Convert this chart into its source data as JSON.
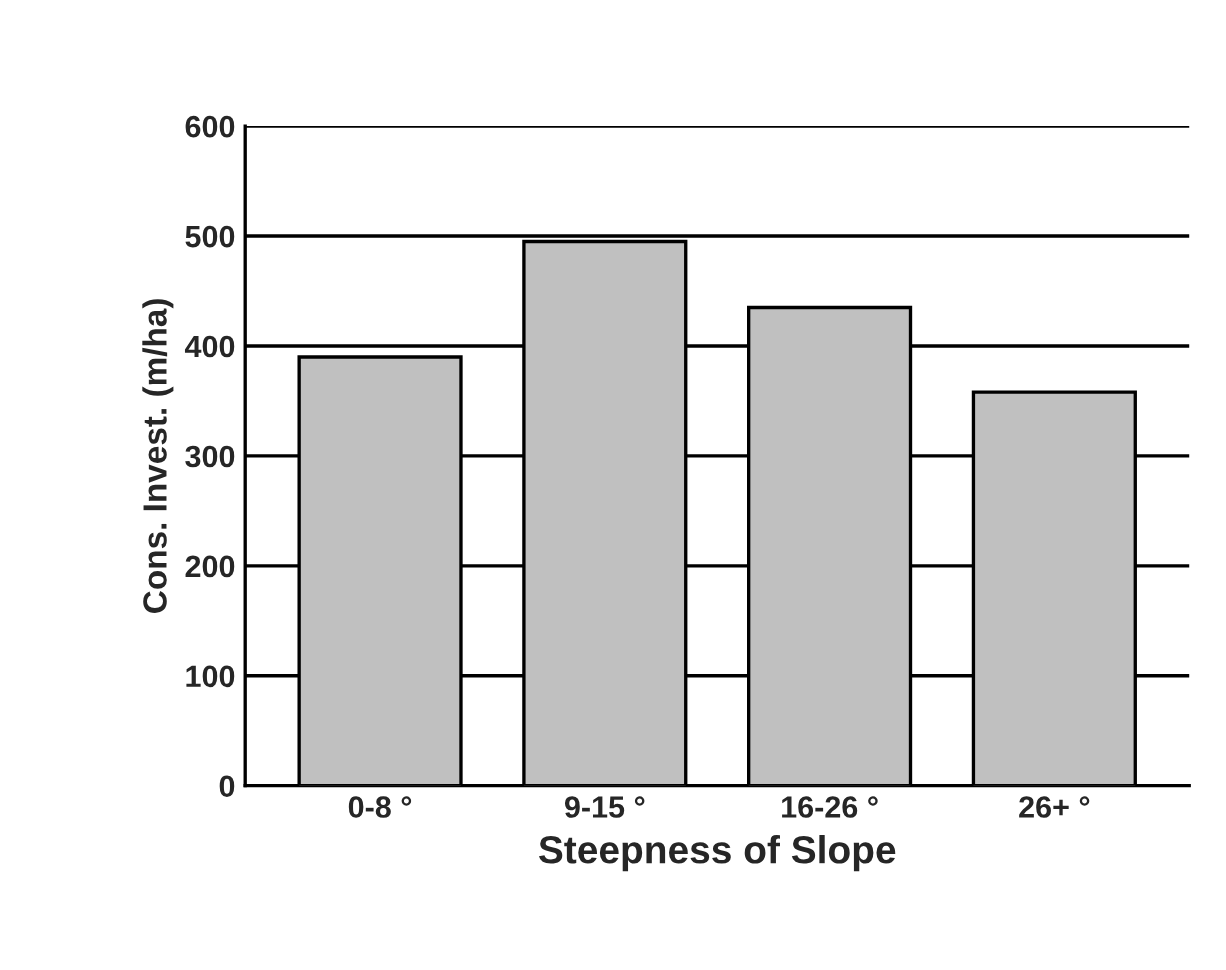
{
  "chart_data": {
    "type": "bar",
    "xlabel": "Steepness of Slope",
    "ylabel": "Cons. Invest. (m/ha)",
    "categories": [
      "0-8 °",
      "9-15 °",
      "16-26 °",
      "26+ °"
    ],
    "values": [
      390,
      495,
      435,
      358
    ],
    "color": "#c0c0c0",
    "ylim": [
      0,
      600
    ],
    "yticks": [
      0,
      100,
      200,
      300,
      400,
      500,
      600
    ],
    "grid": "y",
    "legend": false
  }
}
